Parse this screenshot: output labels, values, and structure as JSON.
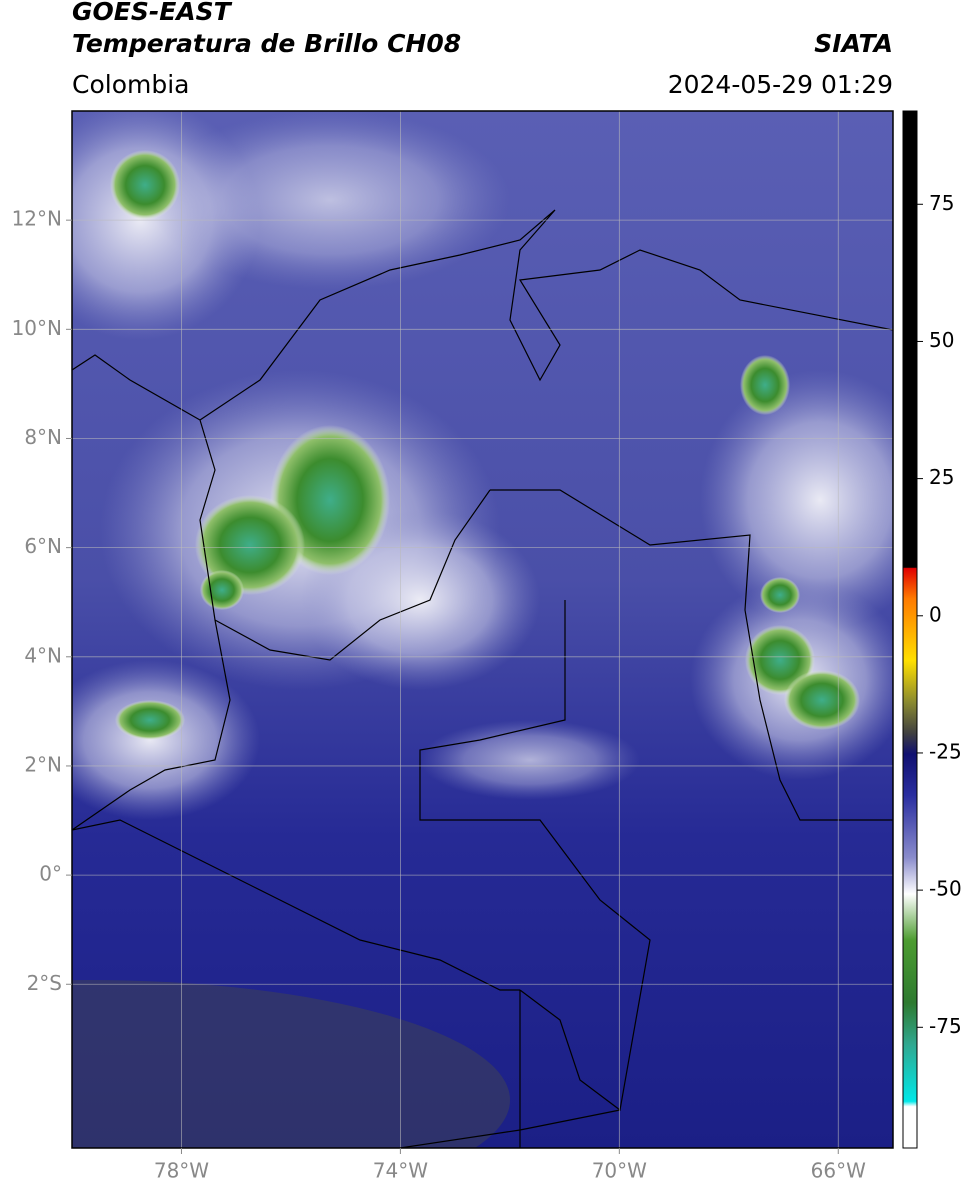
{
  "header": {
    "title": "GOES-EAST",
    "subtitle": "Temperatura de Brillo CH08",
    "source": "SIATA",
    "region": "Colombia",
    "timestamp": "2024-05-29 01:29"
  },
  "map": {
    "lon_range": [
      -80,
      -65
    ],
    "lat_range": [
      -5,
      14
    ],
    "grid": true,
    "lon_ticks": [
      {
        "value": -78,
        "label": "78°W"
      },
      {
        "value": -74,
        "label": "74°W"
      },
      {
        "value": -70,
        "label": "70°W"
      },
      {
        "value": -66,
        "label": "66°W"
      }
    ],
    "lat_ticks": [
      {
        "value": 12,
        "label": "12°N"
      },
      {
        "value": 10,
        "label": "10°N"
      },
      {
        "value": 8,
        "label": "8°N"
      },
      {
        "value": 6,
        "label": "6°N"
      },
      {
        "value": 4,
        "label": "4°N"
      },
      {
        "value": 2,
        "label": "2°N"
      },
      {
        "value": 0,
        "label": "0°"
      },
      {
        "value": -2,
        "label": "2°S"
      }
    ]
  },
  "colorbar": {
    "range": [
      -97,
      92
    ],
    "ticks": [
      75,
      50,
      25,
      0,
      -25,
      -50,
      -75
    ]
  }
}
